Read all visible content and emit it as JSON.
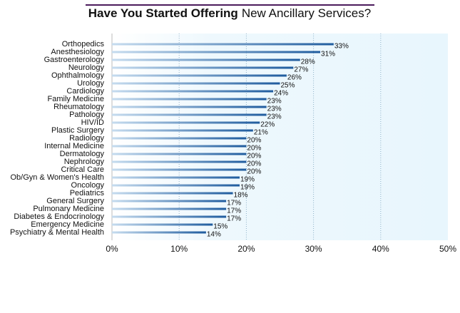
{
  "chart_data": {
    "type": "bar",
    "orientation": "horizontal",
    "title": [
      "Have You Started Offering",
      "New Ancillary Services?"
    ],
    "categories": [
      "Orthopedics",
      "Anesthesiology",
      "Gastroenterology",
      "Neurology",
      "Ophthalmology",
      "Urology",
      "Cardiology",
      "Family Medicine",
      "Rheumatology",
      "Pathology",
      "HIV/ID",
      "Plastic Surgery",
      "Radiology",
      "Internal Medicine",
      "Dermatology",
      "Nephrology",
      "Critical Care",
      "Ob/Gyn & Women's Health",
      "Oncology",
      "Pediatrics",
      "General Surgery",
      "Pulmonary Medicine",
      "Diabetes & Endocrinology",
      "Emergency Medicine",
      "Psychiatry & Mental Health"
    ],
    "values": [
      33,
      31,
      28,
      27,
      26,
      25,
      24,
      23,
      23,
      23,
      22,
      21,
      20,
      20,
      20,
      20,
      20,
      19,
      19,
      18,
      17,
      17,
      17,
      15,
      14
    ],
    "value_labels": [
      "33%",
      "31%",
      "28%",
      "27%",
      "26%",
      "25%",
      "24%",
      "23%",
      "23%",
      "23%",
      "22%",
      "21%",
      "20%",
      "20%",
      "20%",
      "20%",
      "20%",
      "19%",
      "19%",
      "18%",
      "17%",
      "17%",
      "17%",
      "15%",
      "14%"
    ],
    "color": "#1f5c9e",
    "xlim": [
      0,
      50
    ],
    "xticks": [
      {
        "value": 0,
        "label": "0%"
      },
      {
        "value": 10,
        "label": "10%"
      },
      {
        "value": 20,
        "label": "20%"
      },
      {
        "value": 30,
        "label": "30%"
      },
      {
        "value": 40,
        "label": "40%"
      },
      {
        "value": 50,
        "label": "50%"
      }
    ],
    "grid": true
  }
}
